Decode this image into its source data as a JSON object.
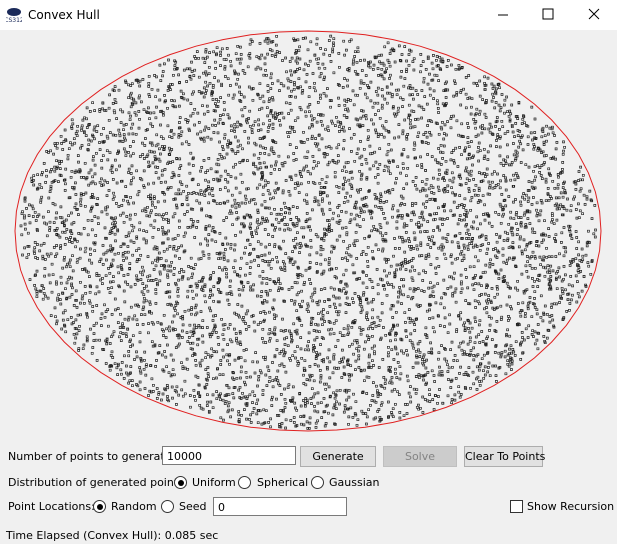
{
  "window": {
    "title": "Convex Hull"
  },
  "controls": {
    "points_label": "Number of points to generate:",
    "points_input": "10000",
    "buttons": [
      "Generate",
      "Solve",
      "Clear To Points"
    ],
    "distribution_label": "Distribution of generated points:",
    "distribution_options": [
      "Uniform",
      "Spherical",
      "Gaussian"
    ],
    "locations_label": "Point Locations:",
    "location_options": [
      "Random",
      "Seed"
    ],
    "seed_input": "0",
    "show_recursion": "Show Recursion"
  },
  "status": "Time Elapsed (Convex Hull): 0.085 sec"
}
